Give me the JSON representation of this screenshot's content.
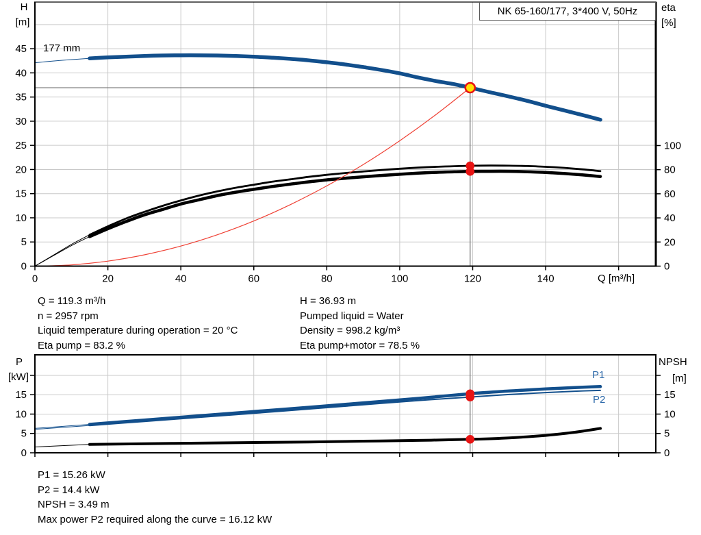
{
  "palette": {
    "curve_blue": "#124f8c",
    "label_blue": "#2a67a8",
    "black": "#000000",
    "red_dot": "#e81414",
    "system_red": "#ef4135",
    "marker_yellow": "#ffe105",
    "grid": "#c9c9c9",
    "crosshair": "#6e6e6e",
    "frame": "#000000"
  },
  "title_box": {
    "label": "NK 65-160/177, 3*400 V, 50Hz"
  },
  "annotations": {
    "block1_left": [
      "Q = 119.3 m³/h",
      "n = 2957 rpm",
      "Liquid temperature during operation = 20 °C",
      "Eta pump = 83.2 %"
    ],
    "block1_right": [
      "H = 36.93 m",
      "Pumped liquid = Water",
      "Density = 998.2 kg/m³",
      "Eta pump+motor = 78.5 %"
    ],
    "block2": [
      "P1 = 15.26 kW",
      "P2 = 14.4 kW",
      "NPSH = 3.49 m",
      "Max power P2 required along the curve = 16.12 kW"
    ]
  },
  "chart_data": [
    {
      "type": "line",
      "id": "head-efficiency-chart",
      "title": "NK 65-160/177, 3*400 V, 50Hz",
      "x_axis": {
        "label": "Q [m³/h]",
        "lim": [
          0,
          170.2
        ],
        "ticks": [
          0,
          20,
          40,
          60,
          80,
          100,
          120,
          140,
          160
        ],
        "tick_labels": [
          "0",
          "20",
          "40",
          "60",
          "80",
          "100",
          "120",
          "140",
          ""
        ]
      },
      "y_left": {
        "label": [
          "H",
          "[m]"
        ],
        "lim": [
          0,
          54.66
        ],
        "ticks": [
          0,
          5,
          10,
          15,
          20,
          25,
          30,
          35,
          40,
          45
        ],
        "grid": [
          5,
          10,
          15,
          20,
          25,
          30,
          35,
          40,
          45,
          50
        ]
      },
      "y_right": {
        "label": [
          "eta",
          "[%]"
        ],
        "lim": [
          0,
          219
        ],
        "ticks": [
          0,
          20,
          40,
          60,
          80,
          100
        ]
      },
      "grid_on": true,
      "legend_position": "none",
      "series": [
        {
          "name": "pump-curve-177mm",
          "label": "177 mm",
          "color": "curve_blue",
          "axis": "left",
          "width": 5.5,
          "thin_until": 15,
          "points": [
            [
              0,
              42.1
            ],
            [
              5,
              42.45
            ],
            [
              10,
              42.75
            ],
            [
              15,
              43.0
            ],
            [
              20,
              43.2
            ],
            [
              25,
              43.35
            ],
            [
              30,
              43.5
            ],
            [
              35,
              43.6
            ],
            [
              40,
              43.65
            ],
            [
              45,
              43.65
            ],
            [
              50,
              43.6
            ],
            [
              55,
              43.5
            ],
            [
              60,
              43.35
            ],
            [
              65,
              43.15
            ],
            [
              70,
              42.9
            ],
            [
              75,
              42.6
            ],
            [
              80,
              42.2
            ],
            [
              85,
              41.75
            ],
            [
              90,
              41.2
            ],
            [
              95,
              40.6
            ],
            [
              100,
              39.9
            ],
            [
              105,
              39.05
            ],
            [
              110,
              38.3
            ],
            [
              115,
              37.65
            ],
            [
              119.3,
              36.93
            ],
            [
              125,
              35.95
            ],
            [
              130,
              35.1
            ],
            [
              135,
              34.2
            ],
            [
              140,
              33.2
            ],
            [
              145,
              32.25
            ],
            [
              150,
              31.3
            ],
            [
              155,
              30.3
            ]
          ]
        },
        {
          "name": "eta-pump-curve",
          "color": "black",
          "axis": "right",
          "width": 2.8,
          "thin_until": 15,
          "points": [
            [
              0,
              0
            ],
            [
              5,
              9
            ],
            [
              10,
              18
            ],
            [
              15,
              26
            ],
            [
              20,
              33
            ],
            [
              25,
              39.5
            ],
            [
              30,
              45
            ],
            [
              35,
              50
            ],
            [
              40,
              54.5
            ],
            [
              45,
              58.5
            ],
            [
              50,
              62
            ],
            [
              55,
              65
            ],
            [
              60,
              67.5
            ],
            [
              65,
              70
            ],
            [
              70,
              72
            ],
            [
              75,
              74
            ],
            [
              80,
              75.7
            ],
            [
              85,
              77.2
            ],
            [
              90,
              78.5
            ],
            [
              95,
              79.7
            ],
            [
              100,
              80.8
            ],
            [
              105,
              81.7
            ],
            [
              110,
              82.4
            ],
            [
              115,
              82.9
            ],
            [
              119.3,
              83.2
            ],
            [
              125,
              83.4
            ],
            [
              130,
              83.3
            ],
            [
              135,
              83.0
            ],
            [
              140,
              82.4
            ],
            [
              145,
              81.5
            ],
            [
              150,
              80.3
            ],
            [
              155,
              78.8
            ]
          ]
        },
        {
          "name": "eta-pump-motor-curve",
          "color": "black",
          "axis": "right",
          "width": 4.5,
          "thin_until": 15,
          "points": [
            [
              0,
              0
            ],
            [
              5,
              8.5
            ],
            [
              10,
              17
            ],
            [
              15,
              24.5
            ],
            [
              20,
              31
            ],
            [
              25,
              37
            ],
            [
              30,
              42.5
            ],
            [
              35,
              47
            ],
            [
              40,
              51.5
            ],
            [
              45,
              55
            ],
            [
              50,
              58.5
            ],
            [
              55,
              61.3
            ],
            [
              60,
              63.7
            ],
            [
              65,
              66
            ],
            [
              70,
              68
            ],
            [
              75,
              69.9
            ],
            [
              80,
              71.5
            ],
            [
              85,
              72.9
            ],
            [
              90,
              74.1
            ],
            [
              95,
              75.2
            ],
            [
              100,
              76.2
            ],
            [
              105,
              77.1
            ],
            [
              110,
              77.8
            ],
            [
              115,
              78.25
            ],
            [
              119.3,
              78.5
            ],
            [
              125,
              78.65
            ],
            [
              130,
              78.6
            ],
            [
              135,
              78.3
            ],
            [
              140,
              77.7
            ],
            [
              145,
              76.8
            ],
            [
              150,
              75.7
            ],
            [
              155,
              74.3
            ]
          ]
        },
        {
          "name": "system-curve",
          "color": "system_red",
          "axis": "left",
          "width": 1.2,
          "points": [
            [
              0,
              0
            ],
            [
              10,
              0.26
            ],
            [
              20,
              1.04
            ],
            [
              30,
              2.34
            ],
            [
              40,
              4.15
            ],
            [
              50,
              6.49
            ],
            [
              60,
              9.34
            ],
            [
              70,
              12.72
            ],
            [
              80,
              16.61
            ],
            [
              90,
              21.02
            ],
            [
              100,
              25.95
            ],
            [
              110,
              31.4
            ],
            [
              119.3,
              36.93
            ]
          ]
        }
      ],
      "crosshair": {
        "q": 119.3,
        "h": 36.93
      },
      "markers": [
        {
          "name": "duty-point",
          "type": "duty",
          "axis": "left",
          "q": 119.3,
          "v": 36.93
        },
        {
          "name": "eta-pump-point",
          "type": "dot",
          "axis": "right",
          "q": 119.3,
          "v": 83.2
        },
        {
          "name": "eta-pump-motor-point",
          "type": "dot",
          "axis": "right",
          "q": 119.3,
          "v": 78.5
        }
      ]
    },
    {
      "type": "line",
      "id": "power-npsh-chart",
      "x_axis": {
        "label": "",
        "lim": [
          0,
          170.2
        ],
        "ticks": [
          0,
          20,
          40,
          60,
          80,
          100,
          120,
          140,
          160
        ],
        "tick_labels": [
          "",
          "",
          "",
          "",
          "",
          "",
          "",
          "",
          ""
        ]
      },
      "y_left": {
        "label": [
          "P",
          "[kW]"
        ],
        "lim": [
          0,
          25.3
        ],
        "ticks": [
          0,
          5,
          10,
          15,
          20
        ],
        "tick_labels": [
          "0",
          "5",
          "10",
          "15",
          ""
        ],
        "grid": [
          5,
          10,
          15,
          20
        ]
      },
      "y_right": {
        "label": [
          "NPSH",
          "[m]"
        ],
        "lim": [
          0,
          25.3
        ],
        "ticks": [
          0,
          5,
          10,
          15,
          20
        ],
        "tick_labels": [
          "0",
          "5",
          "10",
          "15",
          ""
        ]
      },
      "grid_on": true,
      "legend_position": "inline-right",
      "series": [
        {
          "name": "p1-curve",
          "label": "P1",
          "color": "curve_blue",
          "axis": "left",
          "width": 4.5,
          "thin_until": 15,
          "points": [
            [
              0,
              6.3
            ],
            [
              15,
              7.35
            ],
            [
              30,
              8.45
            ],
            [
              45,
              9.55
            ],
            [
              60,
              10.65
            ],
            [
              75,
              11.75
            ],
            [
              90,
              12.9
            ],
            [
              105,
              14.05
            ],
            [
              119.3,
              15.26
            ],
            [
              130,
              15.95
            ],
            [
              140,
              16.5
            ],
            [
              148,
              16.85
            ],
            [
              155,
              17.1
            ]
          ]
        },
        {
          "name": "p2-curve",
          "label": "P2",
          "color": "curve_blue",
          "axis": "left",
          "width": 2,
          "thin_until": 15,
          "points": [
            [
              0,
              6.05
            ],
            [
              15,
              7.05
            ],
            [
              30,
              8.1
            ],
            [
              45,
              9.15
            ],
            [
              60,
              10.2
            ],
            [
              75,
              11.3
            ],
            [
              90,
              12.4
            ],
            [
              105,
              13.5
            ],
            [
              119.3,
              14.4
            ],
            [
              130,
              15.05
            ],
            [
              140,
              15.55
            ],
            [
              148,
              15.9
            ],
            [
              155,
              16.12
            ]
          ]
        },
        {
          "name": "npsh-curve",
          "color": "black",
          "axis": "right",
          "width": 4,
          "thin_until": 15,
          "points": [
            [
              0,
              1.5
            ],
            [
              15,
              2.15
            ],
            [
              30,
              2.35
            ],
            [
              45,
              2.5
            ],
            [
              60,
              2.65
            ],
            [
              75,
              2.8
            ],
            [
              90,
              3.0
            ],
            [
              105,
              3.2
            ],
            [
              119.3,
              3.49
            ],
            [
              130,
              3.85
            ],
            [
              140,
              4.5
            ],
            [
              148,
              5.3
            ],
            [
              155,
              6.3
            ]
          ]
        }
      ],
      "crosshair": {
        "q": 119.3
      },
      "markers": [
        {
          "name": "p1-point",
          "type": "dot",
          "axis": "left",
          "q": 119.3,
          "v": 15.26
        },
        {
          "name": "p2-point",
          "type": "dot",
          "axis": "left",
          "q": 119.3,
          "v": 14.4
        },
        {
          "name": "npsh-point",
          "type": "dot",
          "axis": "right",
          "q": 119.3,
          "v": 3.49
        }
      ]
    }
  ]
}
